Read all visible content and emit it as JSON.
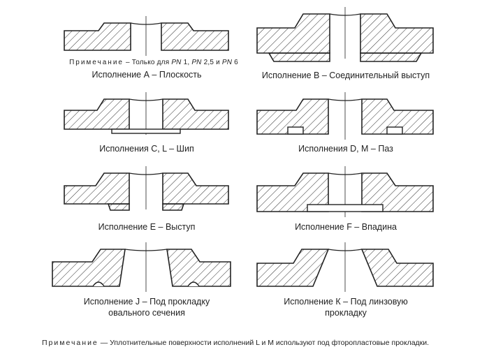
{
  "top_note": {
    "prefix": "Примечание",
    "text": " – Только для ",
    "pn1": "PN",
    "v1": " 1, ",
    "pn2": "PN",
    "v2": " 2,5 и ",
    "pn3": "PN",
    "v3": " 6"
  },
  "captions": {
    "A": "Исполнение А – Плоскость",
    "B": "Исполнение В – Соединительный выступ",
    "C": "Исполнения С, L – Шип",
    "D": "Исполнения D, M – Паз",
    "E": "Исполнение Е – Выступ",
    "F": "Исполнение F – Впадина",
    "J1": "Исполнение J – Под прокладку",
    "J2": "овального сечения",
    "K1": "Исполнение К – Под линзовую",
    "K2": "прокладку"
  },
  "bottom_note": {
    "label": "Примечание",
    "text": " — Уплотнительные поверхности исполнений L и M используют под фторопластовые прокладки."
  }
}
